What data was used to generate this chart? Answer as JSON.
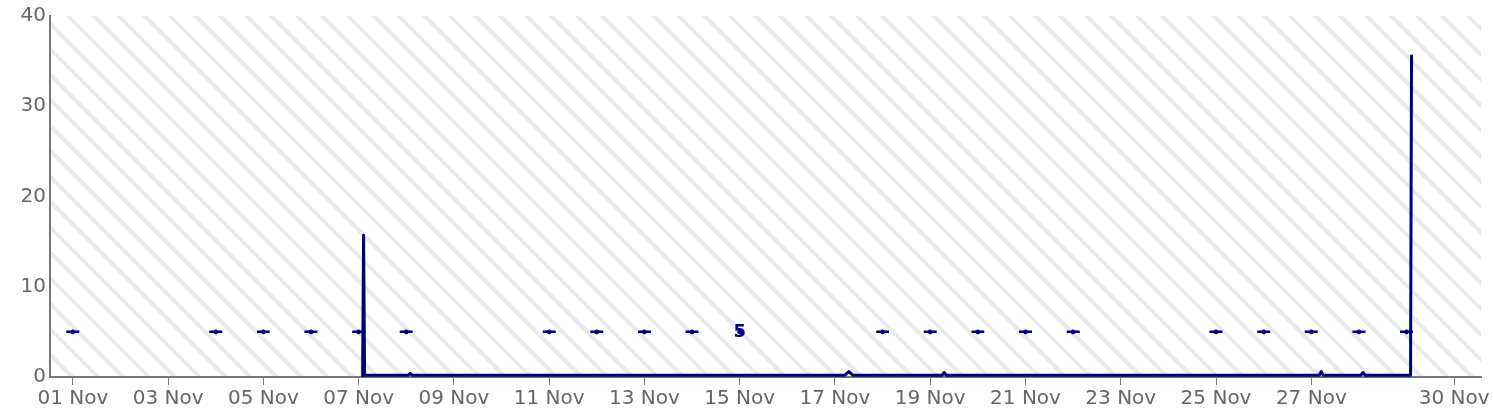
{
  "chart_data": {
    "type": "line",
    "x": [
      "--11-07T02:00",
      "--11-07T02:30",
      "--11-07T03:00",
      "--11-08T01:00",
      "--11-08T02:00",
      "--11-08T03:00",
      "--11-17T05:00",
      "--11-17T07:00",
      "--11-17T09:00",
      "--11-19T06:00",
      "--11-19T07:00",
      "--11-19T08:00",
      "--11-27T04:00",
      "--11-27T05:00",
      "--11-27T06:00",
      "--11-28T01:00",
      "--11-28T02:00",
      "--11-28T03:00",
      "--11-29T02:00",
      "--11-29T02:30"
    ],
    "series": [
      {
        "color": "#000080",
        "values": [
          0,
          15.7,
          0.2,
          0.2,
          0.4,
          0.2,
          0.2,
          0.6,
          0.2,
          0.2,
          0.5,
          0.2,
          0.2,
          0.6,
          0.2,
          0.2,
          0.5,
          0.2,
          0.2,
          35.7
        ]
      },
      {
        "type": "scatter",
        "color": "#000080",
        "x": [
          "--11-01",
          "--11-04",
          "--11-05",
          "--11-06",
          "--11-07",
          "--11-08",
          "--11-11",
          "--11-12",
          "--11-13",
          "--11-14",
          "--11-15",
          "--11-18",
          "--11-19",
          "--11-20",
          "--11-21",
          "--11-22",
          "--11-25",
          "--11-26",
          "--11-27",
          "--11-28",
          "--11-29"
        ],
        "values": [
          5,
          5,
          5,
          5,
          5,
          5,
          5,
          5,
          5,
          5,
          5,
          5,
          5,
          5,
          5,
          5,
          5,
          5,
          5,
          5,
          5
        ],
        "value_labels": [
          "--",
          "--",
          "--",
          "--",
          "--",
          "--",
          "--",
          "--",
          "--",
          "--",
          "5",
          "--",
          "--",
          "--",
          "--",
          "--",
          "--",
          "--",
          "--",
          "--",
          "--"
        ]
      }
    ],
    "xlim": [
      "--10-31T12:30",
      "--11-30T13:30"
    ],
    "xticks": [
      {
        "value": "--11-01",
        "label": "01 Nov"
      },
      {
        "value": "--11-03",
        "label": "03 Nov"
      },
      {
        "value": "--11-05",
        "label": "05 Nov"
      },
      {
        "value": "--11-07",
        "label": "07 Nov"
      },
      {
        "value": "--11-09",
        "label": "09 Nov"
      },
      {
        "value": "--11-11",
        "label": "11 Nov"
      },
      {
        "value": "--11-13",
        "label": "13 Nov"
      },
      {
        "value": "--11-15",
        "label": "15 Nov"
      },
      {
        "value": "--11-17",
        "label": "17 Nov"
      },
      {
        "value": "--11-19",
        "label": "19 Nov"
      },
      {
        "value": "--11-21",
        "label": "21 Nov"
      },
      {
        "value": "--11-23",
        "label": "23 Nov"
      },
      {
        "value": "--11-25",
        "label": "25 Nov"
      },
      {
        "value": "--11-27",
        "label": "27 Nov"
      },
      {
        "value": "--11-30",
        "label": "30 Nov"
      }
    ],
    "ylim": [
      0,
      40
    ],
    "yticks": [
      0,
      10,
      20,
      30,
      40
    ],
    "grid": false,
    "legend": false,
    "line_style": "solid"
  }
}
